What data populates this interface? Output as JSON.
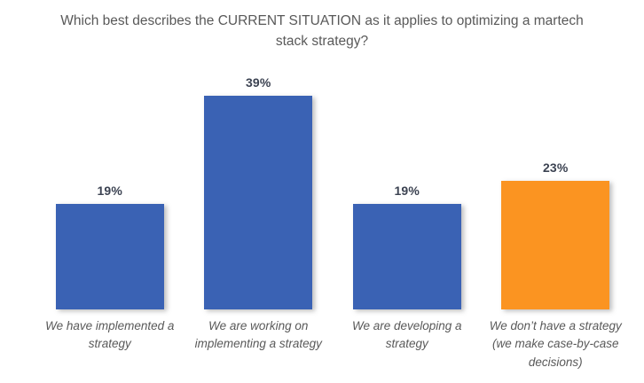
{
  "chart_data": {
    "type": "bar",
    "title": "Which best describes the CURRENT SITUATION as it applies to optimizing a martech stack strategy?",
    "categories": [
      "We have implemented a strategy",
      "We are working on implementing a strategy",
      "We are developing a strategy",
      "We don’t have a strategy (we make case-by-case decisions)"
    ],
    "values": [
      19,
      39,
      19,
      23
    ],
    "value_labels": [
      "19%",
      "39%",
      "19%",
      "23%"
    ],
    "bar_colors": [
      "#3A62B4",
      "#3A62B4",
      "#3A62B4",
      "#FB9421"
    ],
    "xlabel": "",
    "ylabel": "",
    "ylim": [
      0,
      42
    ],
    "grid": false,
    "legend_position": "none",
    "data_labels": "above-bars"
  },
  "colors": {
    "background": "#FFFFFF",
    "blue": "#3A62B4",
    "orange": "#FB9421",
    "title_text": "#595959",
    "value_label_text": "#3C4352",
    "category_label_text": "#595959"
  }
}
